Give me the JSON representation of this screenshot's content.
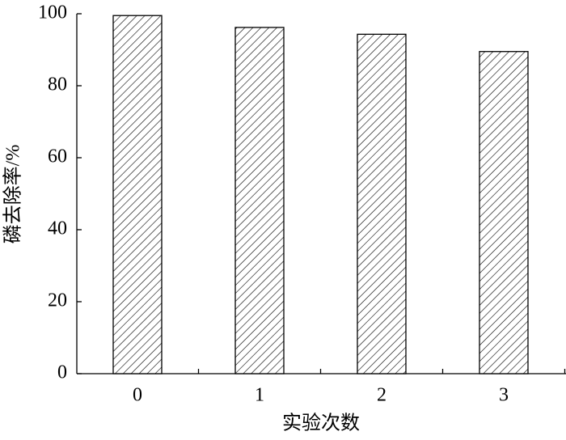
{
  "chart_data": {
    "type": "bar",
    "categories": [
      "0",
      "1",
      "2",
      "3"
    ],
    "values": [
      99.5,
      96.2,
      94.3,
      89.5
    ],
    "color": "#000000",
    "ylim": [
      0,
      100
    ],
    "yticks": [
      0,
      20,
      40,
      60,
      80,
      100
    ],
    "xlabel": "实验次数",
    "ylabel": "磷去除率/%",
    "grid": false,
    "pattern": "hatch"
  }
}
